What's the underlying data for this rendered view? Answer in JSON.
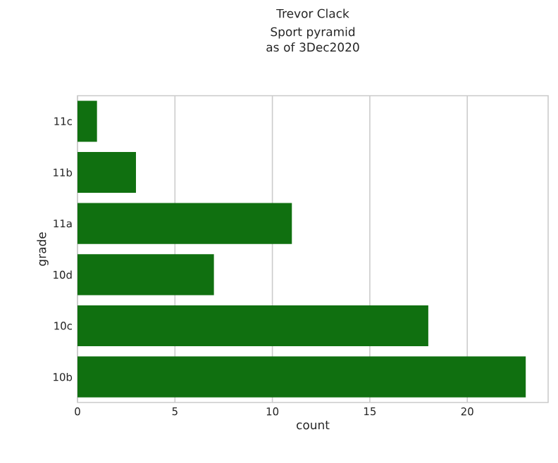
{
  "chart_data": {
    "type": "bar",
    "orientation": "horizontal",
    "title": "Trevor Clack",
    "subtitle": "Sport pyramid as of 3Dec2020",
    "xlabel": "count",
    "ylabel": "grade",
    "categories": [
      "11c",
      "11b",
      "11a",
      "10d",
      "10c",
      "10b"
    ],
    "values": [
      1,
      3,
      11,
      7,
      18,
      23
    ],
    "color": "#107010",
    "xlim": [
      0,
      24.15
    ],
    "xticks": [
      0,
      5,
      10,
      15,
      20
    ],
    "grid": "x"
  }
}
